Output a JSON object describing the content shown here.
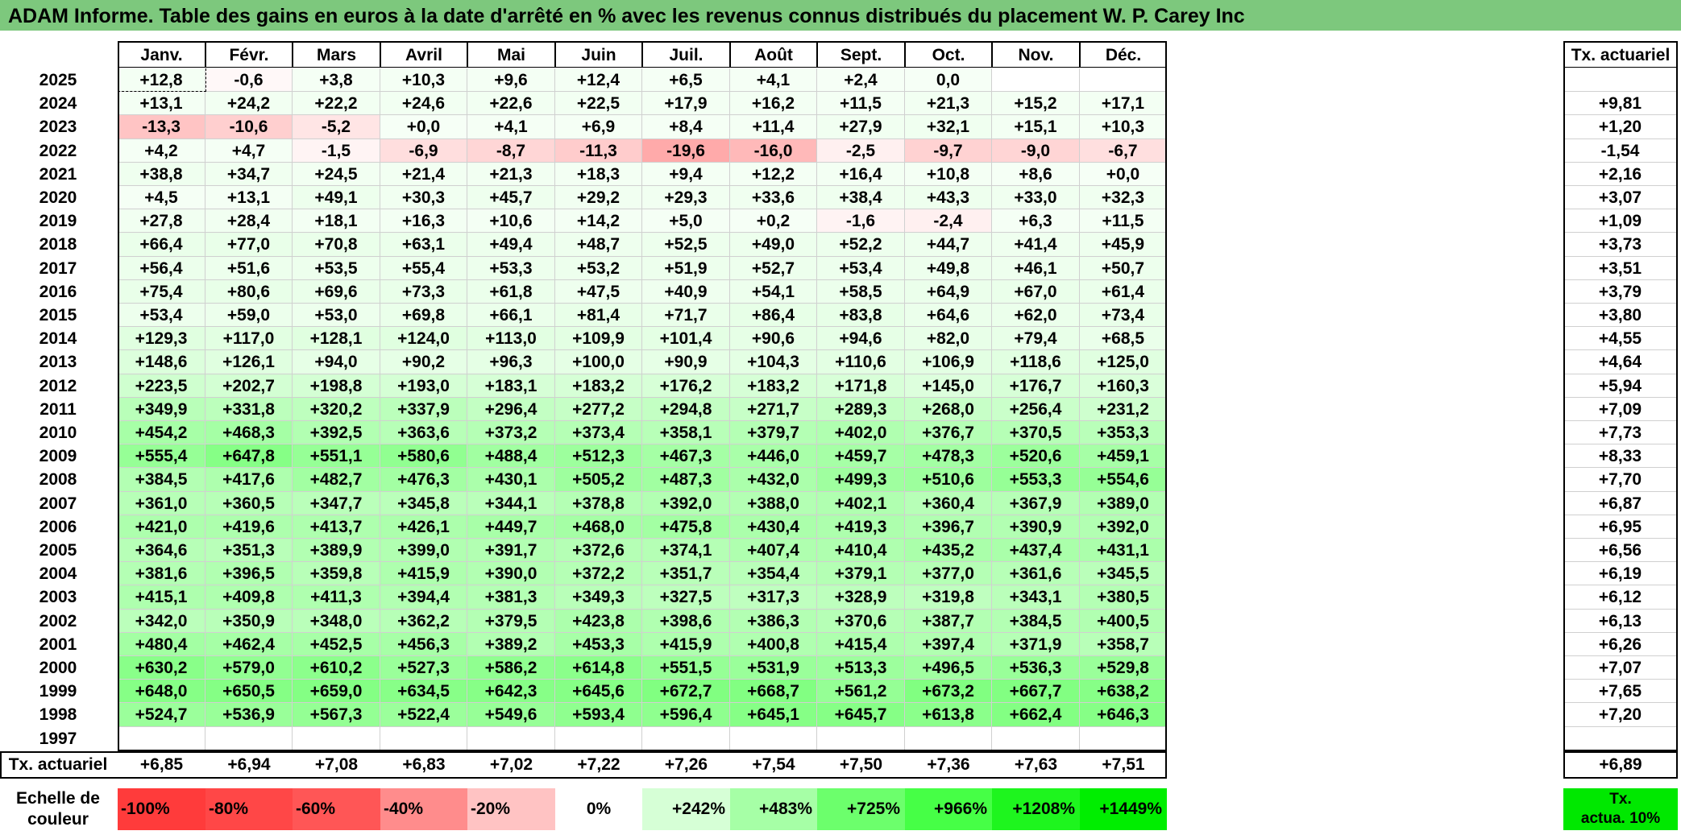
{
  "title": "ADAM Informe. Table des gains en euros à la date d'arrêté en % avec les revenus connus distribués du placement W. P. Carey Inc",
  "months": [
    "Janv.",
    "Févr.",
    "Mars",
    "Avril",
    "Mai",
    "Juin",
    "Juil.",
    "Août",
    "Sept.",
    "Oct.",
    "Nov.",
    "Déc."
  ],
  "rate_header": "Tx. actuariel",
  "rows": [
    {
      "year": "2025",
      "values": [
        "+12,8",
        "-0,6",
        "+3,8",
        "+10,3",
        "+9,6",
        "+12,4",
        "+6,5",
        "+4,1",
        "+2,4",
        "0,0",
        "",
        ""
      ],
      "rate": ""
    },
    {
      "year": "2024",
      "values": [
        "+13,1",
        "+24,2",
        "+22,2",
        "+24,6",
        "+22,6",
        "+22,5",
        "+17,9",
        "+16,2",
        "+11,5",
        "+21,3",
        "+15,2",
        "+17,1"
      ],
      "rate": "+9,81"
    },
    {
      "year": "2023",
      "values": [
        "-13,3",
        "-10,6",
        "-5,2",
        "+0,0",
        "+4,1",
        "+6,9",
        "+8,4",
        "+11,4",
        "+27,9",
        "+32,1",
        "+15,1",
        "+10,3"
      ],
      "rate": "+1,20"
    },
    {
      "year": "2022",
      "values": [
        "+4,2",
        "+4,7",
        "-1,5",
        "-6,9",
        "-8,7",
        "-11,3",
        "-19,6",
        "-16,0",
        "-2,5",
        "-9,7",
        "-9,0",
        "-6,7"
      ],
      "rate": "-1,54"
    },
    {
      "year": "2021",
      "values": [
        "+38,8",
        "+34,7",
        "+24,5",
        "+21,4",
        "+21,3",
        "+18,3",
        "+9,4",
        "+12,2",
        "+16,4",
        "+10,8",
        "+8,6",
        "+0,0"
      ],
      "rate": "+2,16"
    },
    {
      "year": "2020",
      "values": [
        "+4,5",
        "+13,1",
        "+49,1",
        "+30,3",
        "+45,7",
        "+29,2",
        "+29,3",
        "+33,6",
        "+38,4",
        "+43,3",
        "+33,0",
        "+32,3"
      ],
      "rate": "+3,07"
    },
    {
      "year": "2019",
      "values": [
        "+27,8",
        "+28,4",
        "+18,1",
        "+16,3",
        "+10,6",
        "+14,2",
        "+5,0",
        "+0,2",
        "-1,6",
        "-2,4",
        "+6,3",
        "+11,5"
      ],
      "rate": "+1,09"
    },
    {
      "year": "2018",
      "values": [
        "+66,4",
        "+77,0",
        "+70,8",
        "+63,1",
        "+49,4",
        "+48,7",
        "+52,5",
        "+49,0",
        "+52,2",
        "+44,7",
        "+41,4",
        "+45,9"
      ],
      "rate": "+3,73"
    },
    {
      "year": "2017",
      "values": [
        "+56,4",
        "+51,6",
        "+53,5",
        "+55,4",
        "+53,3",
        "+53,2",
        "+51,9",
        "+52,7",
        "+53,4",
        "+49,8",
        "+46,1",
        "+50,7"
      ],
      "rate": "+3,51"
    },
    {
      "year": "2016",
      "values": [
        "+75,4",
        "+80,6",
        "+69,6",
        "+73,3",
        "+61,8",
        "+47,5",
        "+40,9",
        "+54,1",
        "+58,5",
        "+64,9",
        "+67,0",
        "+61,4"
      ],
      "rate": "+3,79"
    },
    {
      "year": "2015",
      "values": [
        "+53,4",
        "+59,0",
        "+53,0",
        "+69,8",
        "+66,1",
        "+81,4",
        "+71,7",
        "+86,4",
        "+83,8",
        "+64,6",
        "+62,0",
        "+73,4"
      ],
      "rate": "+3,80"
    },
    {
      "year": "2014",
      "values": [
        "+129,3",
        "+117,0",
        "+128,1",
        "+124,0",
        "+113,0",
        "+109,9",
        "+101,4",
        "+90,6",
        "+94,6",
        "+82,0",
        "+79,4",
        "+68,5"
      ],
      "rate": "+4,55"
    },
    {
      "year": "2013",
      "values": [
        "+148,6",
        "+126,1",
        "+94,0",
        "+90,2",
        "+96,3",
        "+100,0",
        "+90,9",
        "+104,3",
        "+110,6",
        "+106,9",
        "+118,6",
        "+125,0"
      ],
      "rate": "+4,64"
    },
    {
      "year": "2012",
      "values": [
        "+223,5",
        "+202,7",
        "+198,8",
        "+193,0",
        "+183,1",
        "+183,2",
        "+176,2",
        "+183,2",
        "+171,8",
        "+145,0",
        "+176,7",
        "+160,3"
      ],
      "rate": "+5,94"
    },
    {
      "year": "2011",
      "values": [
        "+349,9",
        "+331,8",
        "+320,2",
        "+337,9",
        "+296,4",
        "+277,2",
        "+294,8",
        "+271,7",
        "+289,3",
        "+268,0",
        "+256,4",
        "+231,2"
      ],
      "rate": "+7,09"
    },
    {
      "year": "2010",
      "values": [
        "+454,2",
        "+468,3",
        "+392,5",
        "+363,6",
        "+373,2",
        "+373,4",
        "+358,1",
        "+379,7",
        "+402,0",
        "+376,7",
        "+370,5",
        "+353,3"
      ],
      "rate": "+7,73"
    },
    {
      "year": "2009",
      "values": [
        "+555,4",
        "+647,8",
        "+551,1",
        "+580,6",
        "+488,4",
        "+512,3",
        "+467,3",
        "+446,0",
        "+459,7",
        "+478,3",
        "+520,6",
        "+459,1"
      ],
      "rate": "+8,33"
    },
    {
      "year": "2008",
      "values": [
        "+384,5",
        "+417,6",
        "+482,7",
        "+476,3",
        "+430,1",
        "+505,2",
        "+487,3",
        "+432,0",
        "+499,3",
        "+510,6",
        "+553,3",
        "+554,6"
      ],
      "rate": "+7,70"
    },
    {
      "year": "2007",
      "values": [
        "+361,0",
        "+360,5",
        "+347,7",
        "+345,8",
        "+344,1",
        "+378,8",
        "+392,0",
        "+388,0",
        "+402,1",
        "+360,4",
        "+367,9",
        "+389,0"
      ],
      "rate": "+6,87"
    },
    {
      "year": "2006",
      "values": [
        "+421,0",
        "+419,6",
        "+413,7",
        "+426,1",
        "+449,7",
        "+468,0",
        "+475,8",
        "+430,4",
        "+419,3",
        "+396,7",
        "+390,9",
        "+392,0"
      ],
      "rate": "+6,95"
    },
    {
      "year": "2005",
      "values": [
        "+364,6",
        "+351,3",
        "+389,9",
        "+399,0",
        "+391,7",
        "+372,6",
        "+374,1",
        "+407,4",
        "+410,4",
        "+435,2",
        "+437,4",
        "+431,1"
      ],
      "rate": "+6,56"
    },
    {
      "year": "2004",
      "values": [
        "+381,6",
        "+396,5",
        "+359,8",
        "+415,9",
        "+390,0",
        "+372,2",
        "+351,7",
        "+354,4",
        "+379,1",
        "+377,0",
        "+361,6",
        "+345,5"
      ],
      "rate": "+6,19"
    },
    {
      "year": "2003",
      "values": [
        "+415,1",
        "+409,8",
        "+411,3",
        "+394,4",
        "+381,3",
        "+349,3",
        "+327,5",
        "+317,3",
        "+328,9",
        "+319,8",
        "+343,1",
        "+380,5"
      ],
      "rate": "+6,12"
    },
    {
      "year": "2002",
      "values": [
        "+342,0",
        "+350,9",
        "+348,0",
        "+362,2",
        "+379,5",
        "+423,8",
        "+398,6",
        "+386,3",
        "+370,6",
        "+387,7",
        "+384,5",
        "+400,5"
      ],
      "rate": "+6,13"
    },
    {
      "year": "2001",
      "values": [
        "+480,4",
        "+462,4",
        "+452,5",
        "+456,3",
        "+389,2",
        "+453,3",
        "+415,9",
        "+400,8",
        "+415,4",
        "+397,4",
        "+371,9",
        "+358,7"
      ],
      "rate": "+6,26"
    },
    {
      "year": "2000",
      "values": [
        "+630,2",
        "+579,0",
        "+610,2",
        "+527,3",
        "+586,2",
        "+614,8",
        "+551,5",
        "+531,9",
        "+513,3",
        "+496,5",
        "+536,3",
        "+529,8"
      ],
      "rate": "+7,07"
    },
    {
      "year": "1999",
      "values": [
        "+648,0",
        "+650,5",
        "+659,0",
        "+634,5",
        "+642,3",
        "+645,6",
        "+672,7",
        "+668,7",
        "+561,2",
        "+673,2",
        "+667,7",
        "+638,2"
      ],
      "rate": "+7,65"
    },
    {
      "year": "1998",
      "values": [
        "+524,7",
        "+536,9",
        "+567,3",
        "+522,4",
        "+549,6",
        "+593,4",
        "+596,4",
        "+645,1",
        "+645,7",
        "+613,8",
        "+662,4",
        "+646,3"
      ],
      "rate": "+7,20"
    },
    {
      "year": "1997",
      "values": [
        "",
        "",
        "",
        "",
        "",
        "",
        "",
        "",
        "",
        "",
        "",
        ""
      ],
      "rate": ""
    }
  ],
  "summary": {
    "label": "Tx. actuariel",
    "values": [
      "+6,85",
      "+6,94",
      "+7,08",
      "+6,83",
      "+7,02",
      "+7,22",
      "+7,26",
      "+7,54",
      "+7,50",
      "+7,36",
      "+7,63",
      "+7,51"
    ],
    "total": "+6,89"
  },
  "scale": {
    "label_line1": "Echelle de",
    "label_line2": "couleur",
    "entries": [
      {
        "label": "-100%",
        "color": "#ff3b3b",
        "align": "neg"
      },
      {
        "label": "-80%",
        "color": "#ff4747",
        "align": "neg"
      },
      {
        "label": "-60%",
        "color": "#ff5656",
        "align": "neg"
      },
      {
        "label": "-40%",
        "color": "#ff8c8c",
        "align": "neg"
      },
      {
        "label": "-20%",
        "color": "#ffc3c3",
        "align": "neg"
      },
      {
        "label": "0%",
        "color": "#ffffff",
        "align": "zero"
      },
      {
        "label": "+242%",
        "color": "#d6ffd6",
        "align": "pos"
      },
      {
        "label": "+483%",
        "color": "#a6ffa6",
        "align": "pos"
      },
      {
        "label": "+725%",
        "color": "#6cff6c",
        "align": "pos"
      },
      {
        "label": "+966%",
        "color": "#46ff46",
        "align": "pos"
      },
      {
        "label": "+1208%",
        "color": "#1ef51e",
        "align": "pos"
      },
      {
        "label": "+1449%",
        "color": "#00ee00",
        "align": "pos"
      }
    ],
    "rate_line1": "Tx.",
    "rate_line2": "actua. 10%",
    "rate_color": "#00e800"
  }
}
